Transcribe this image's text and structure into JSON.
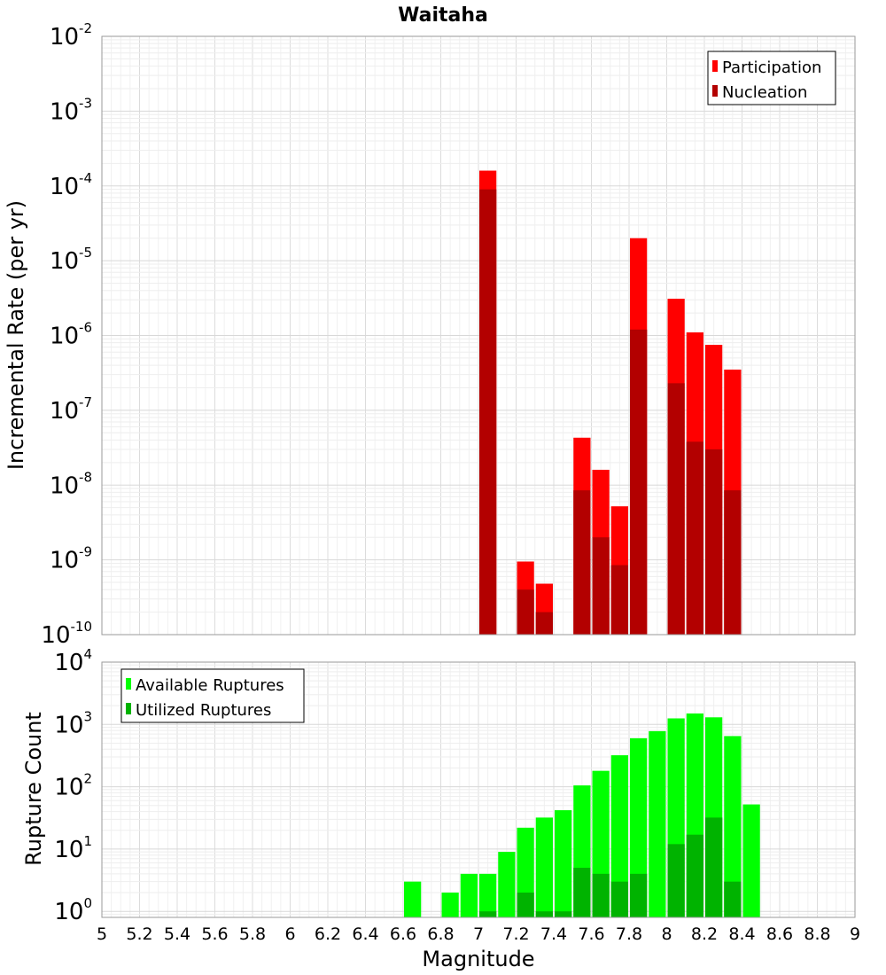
{
  "chart_data": [
    {
      "type": "bar",
      "title": "Waitaha",
      "xlabel": "",
      "ylabel": "Incremental Rate (per yr)",
      "yscale": "log",
      "ylim": [
        1e-10,
        0.01
      ],
      "xlim": [
        5,
        9
      ],
      "bar_width": 0.1,
      "grid": true,
      "legend_position": "top-right",
      "ytick_labels": [
        {
          "base": "10",
          "exp": "-10",
          "value": 1e-10
        },
        {
          "base": "10",
          "exp": "-9",
          "value": 1e-09
        },
        {
          "base": "10",
          "exp": "-8",
          "value": 1e-08
        },
        {
          "base": "10",
          "exp": "-7",
          "value": 1e-07
        },
        {
          "base": "10",
          "exp": "-6",
          "value": 1e-06
        },
        {
          "base": "10",
          "exp": "-5",
          "value": 1e-05
        },
        {
          "base": "10",
          "exp": "-4",
          "value": 0.0001
        },
        {
          "base": "10",
          "exp": "-3",
          "value": 0.001
        },
        {
          "base": "10",
          "exp": "-2",
          "value": 0.01
        }
      ],
      "series": [
        {
          "name": "Participation",
          "color": "#ff0000",
          "points": [
            {
              "x": 7.05,
              "y": 0.00016
            },
            {
              "x": 7.25,
              "y": 9.5e-10
            },
            {
              "x": 7.35,
              "y": 4.8e-10
            },
            {
              "x": 7.55,
              "y": 4.3e-08
            },
            {
              "x": 7.65,
              "y": 1.6e-08
            },
            {
              "x": 7.75,
              "y": 5.2e-09
            },
            {
              "x": 7.85,
              "y": 2e-05
            },
            {
              "x": 8.05,
              "y": 3.1e-06
            },
            {
              "x": 8.15,
              "y": 1.1e-06
            },
            {
              "x": 8.25,
              "y": 7.5e-07
            },
            {
              "x": 8.35,
              "y": 3.5e-07
            }
          ]
        },
        {
          "name": "Nucleation",
          "color": "#b30000",
          "points": [
            {
              "x": 7.05,
              "y": 9e-05
            },
            {
              "x": 7.25,
              "y": 4e-10
            },
            {
              "x": 7.35,
              "y": 2e-10
            },
            {
              "x": 7.55,
              "y": 8.5e-09
            },
            {
              "x": 7.65,
              "y": 2e-09
            },
            {
              "x": 7.75,
              "y": 8.5e-10
            },
            {
              "x": 7.85,
              "y": 1.2e-06
            },
            {
              "x": 8.05,
              "y": 2.3e-07
            },
            {
              "x": 8.15,
              "y": 3.8e-08
            },
            {
              "x": 8.25,
              "y": 3e-08
            },
            {
              "x": 8.35,
              "y": 8.5e-09
            }
          ]
        }
      ]
    },
    {
      "type": "bar",
      "title": "",
      "xlabel": "Magnitude",
      "ylabel": "Rupture Count",
      "yscale": "log",
      "ylim": [
        0.8,
        10000
      ],
      "xlim": [
        5,
        9
      ],
      "bar_width": 0.1,
      "grid": true,
      "legend_position": "top-left",
      "xtick_labels": [
        "5",
        "5.2",
        "5.4",
        "5.6",
        "5.8",
        "6",
        "6.2",
        "6.4",
        "6.6",
        "6.8",
        "7",
        "7.2",
        "7.4",
        "7.6",
        "7.8",
        "8",
        "8.2",
        "8.4",
        "8.6",
        "8.8",
        "9"
      ],
      "ytick_labels": [
        {
          "base": "10",
          "exp": "0",
          "value": 1
        },
        {
          "base": "10",
          "exp": "1",
          "value": 10
        },
        {
          "base": "10",
          "exp": "2",
          "value": 100
        },
        {
          "base": "10",
          "exp": "3",
          "value": 1000
        },
        {
          "base": "10",
          "exp": "4",
          "value": 10000
        }
      ],
      "series": [
        {
          "name": "Available Ruptures",
          "color": "#00ff00",
          "points": [
            {
              "x": 6.65,
              "y": 3
            },
            {
              "x": 6.85,
              "y": 2
            },
            {
              "x": 6.95,
              "y": 4
            },
            {
              "x": 7.05,
              "y": 4
            },
            {
              "x": 7.15,
              "y": 9
            },
            {
              "x": 7.25,
              "y": 22
            },
            {
              "x": 7.35,
              "y": 32
            },
            {
              "x": 7.45,
              "y": 42
            },
            {
              "x": 7.55,
              "y": 105
            },
            {
              "x": 7.65,
              "y": 180
            },
            {
              "x": 7.75,
              "y": 320
            },
            {
              "x": 7.85,
              "y": 600
            },
            {
              "x": 7.95,
              "y": 780
            },
            {
              "x": 8.05,
              "y": 1250
            },
            {
              "x": 8.15,
              "y": 1500
            },
            {
              "x": 8.25,
              "y": 1300
            },
            {
              "x": 8.35,
              "y": 650
            },
            {
              "x": 8.45,
              "y": 52
            }
          ]
        },
        {
          "name": "Utilized Ruptures",
          "color": "#00b300",
          "points": [
            {
              "x": 7.05,
              "y": 1
            },
            {
              "x": 7.25,
              "y": 2
            },
            {
              "x": 7.35,
              "y": 1
            },
            {
              "x": 7.45,
              "y": 1
            },
            {
              "x": 7.55,
              "y": 5
            },
            {
              "x": 7.65,
              "y": 4
            },
            {
              "x": 7.75,
              "y": 3
            },
            {
              "x": 7.85,
              "y": 4
            },
            {
              "x": 8.05,
              "y": 12
            },
            {
              "x": 8.15,
              "y": 17
            },
            {
              "x": 8.25,
              "y": 32
            },
            {
              "x": 8.35,
              "y": 3
            }
          ]
        }
      ]
    }
  ]
}
